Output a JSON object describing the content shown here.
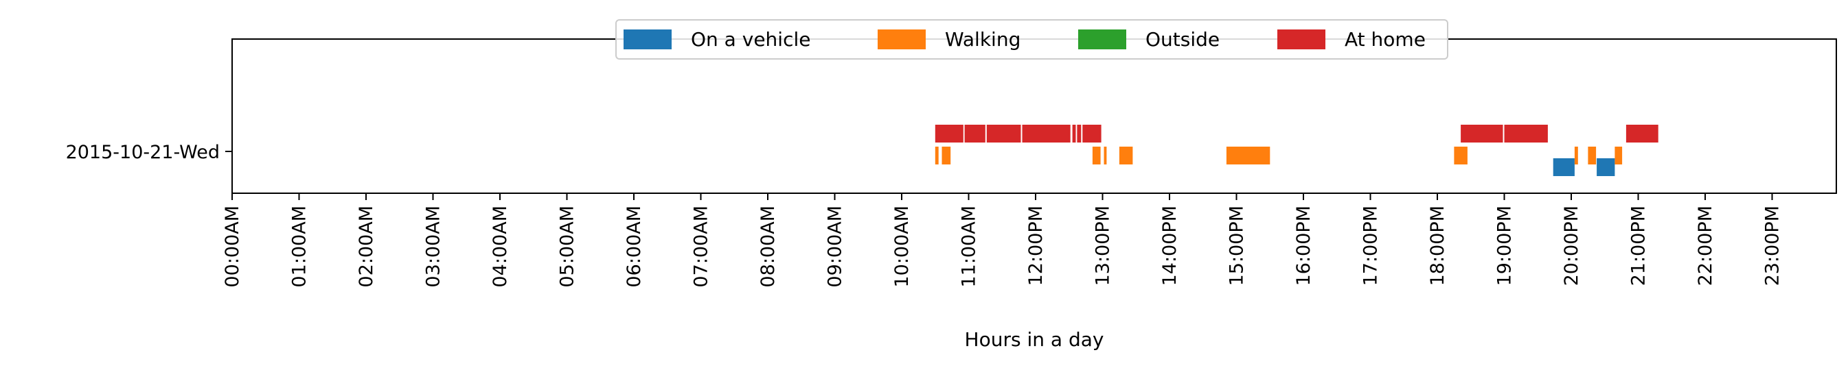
{
  "chart_data": {
    "type": "timeline",
    "title": "",
    "xlabel": "Hours in a day",
    "ylabel": "",
    "xlim": [
      0,
      24
    ],
    "grid": false,
    "legend_placement": "top-center",
    "rows": [
      "2015-10-21-Wed"
    ],
    "xtick_labels": [
      "00:00AM",
      "01:00AM",
      "02:00AM",
      "03:00AM",
      "04:00AM",
      "05:00AM",
      "06:00AM",
      "07:00AM",
      "08:00AM",
      "09:00AM",
      "10:00AM",
      "11:00AM",
      "12:00PM",
      "13:00PM",
      "14:00PM",
      "15:00PM",
      "16:00PM",
      "17:00PM",
      "18:00PM",
      "19:00PM",
      "20:00PM",
      "21:00PM",
      "22:00PM",
      "23:00PM"
    ],
    "series": [
      {
        "name": "On a vehicle",
        "color": "#1f77b4",
        "segments": [
          [
            19.73,
            20.05
          ],
          [
            20.38,
            20.65
          ]
        ]
      },
      {
        "name": "Walking",
        "color": "#ff7f0e",
        "segments": [
          [
            10.5,
            10.55
          ],
          [
            10.6,
            10.73
          ],
          [
            12.85,
            12.97
          ],
          [
            13.02,
            13.06
          ],
          [
            13.25,
            13.45
          ],
          [
            14.85,
            15.5
          ],
          [
            18.25,
            18.45
          ],
          [
            20.05,
            20.1
          ],
          [
            20.25,
            20.37
          ],
          [
            20.65,
            20.76
          ]
        ]
      },
      {
        "name": "Outside",
        "color": "#2ca02c",
        "segments": []
      },
      {
        "name": "At home",
        "color": "#d62728",
        "segments": [
          [
            10.5,
            10.92
          ],
          [
            10.94,
            11.25
          ],
          [
            11.27,
            11.78
          ],
          [
            11.8,
            12.52
          ],
          [
            12.55,
            12.6
          ],
          [
            12.62,
            12.68
          ],
          [
            12.7,
            12.98
          ],
          [
            18.35,
            18.98
          ],
          [
            19.0,
            19.65
          ],
          [
            20.82,
            21.3
          ]
        ]
      }
    ]
  }
}
